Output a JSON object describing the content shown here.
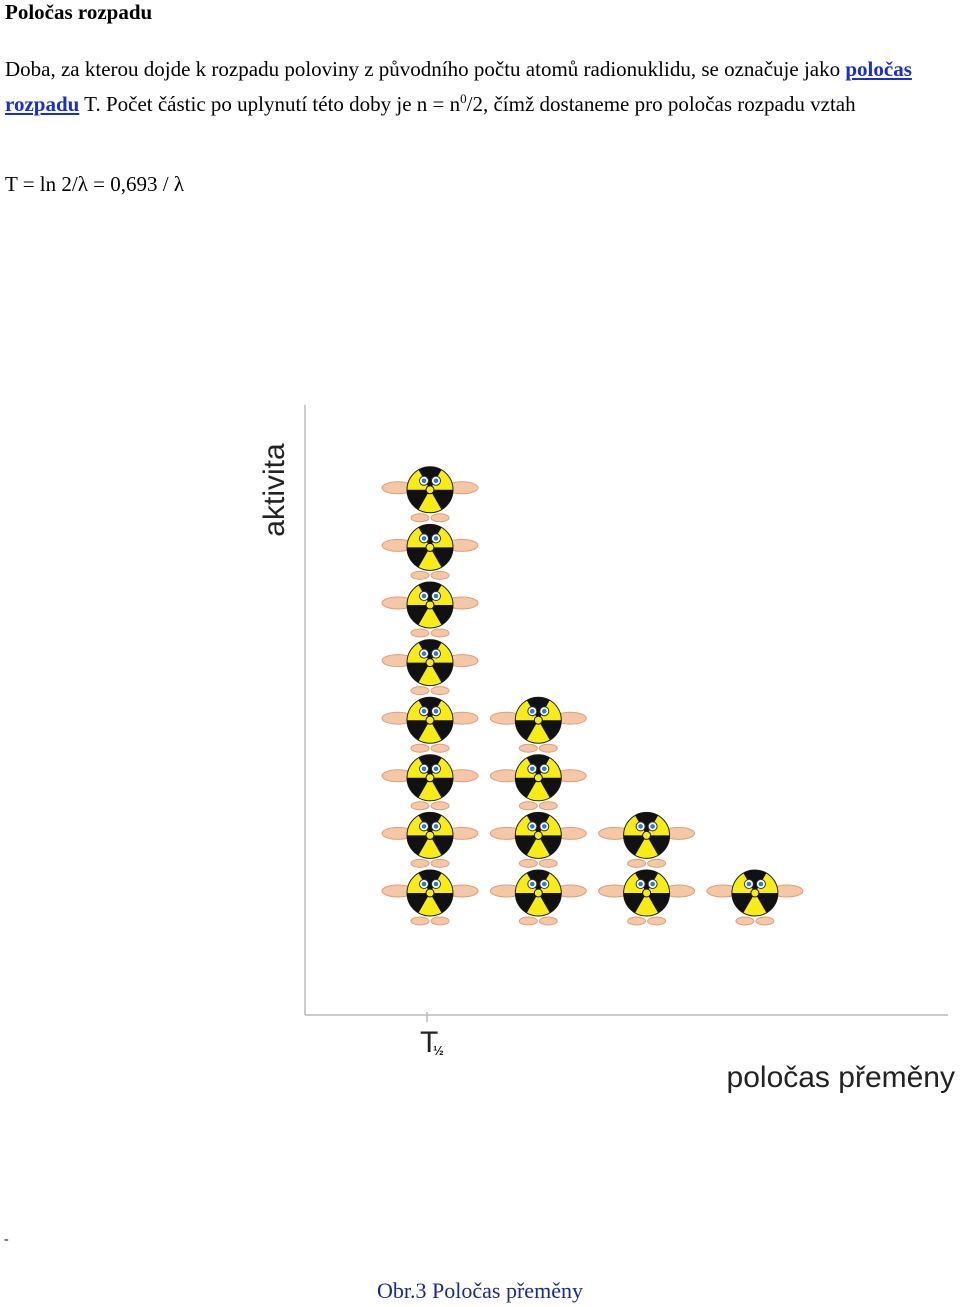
{
  "title": "Poločas rozpadu",
  "paragraph": {
    "text_1": "Doba, za kterou dojde k rozpadu poloviny z původního počtu atomů radionuklidu, se označuje jako ",
    "link": "poločas rozpadu",
    "text_2": " T. Počet částic po uplynutí této doby je n = n",
    "superscript": "0",
    "text_3": "/2, čímž dostaneme pro poločas rozpadu vztah"
  },
  "formula": "T = ln 2/λ = 0,693 / λ",
  "figure": {
    "y_label": "aktivita",
    "x_tick": "T",
    "x_tick_subscript": "½",
    "x_label": "poločas přeměny",
    "counts": [
      8,
      4,
      2,
      1
    ]
  },
  "dash": "-",
  "caption": "Obr.3 Poločas přeměny"
}
